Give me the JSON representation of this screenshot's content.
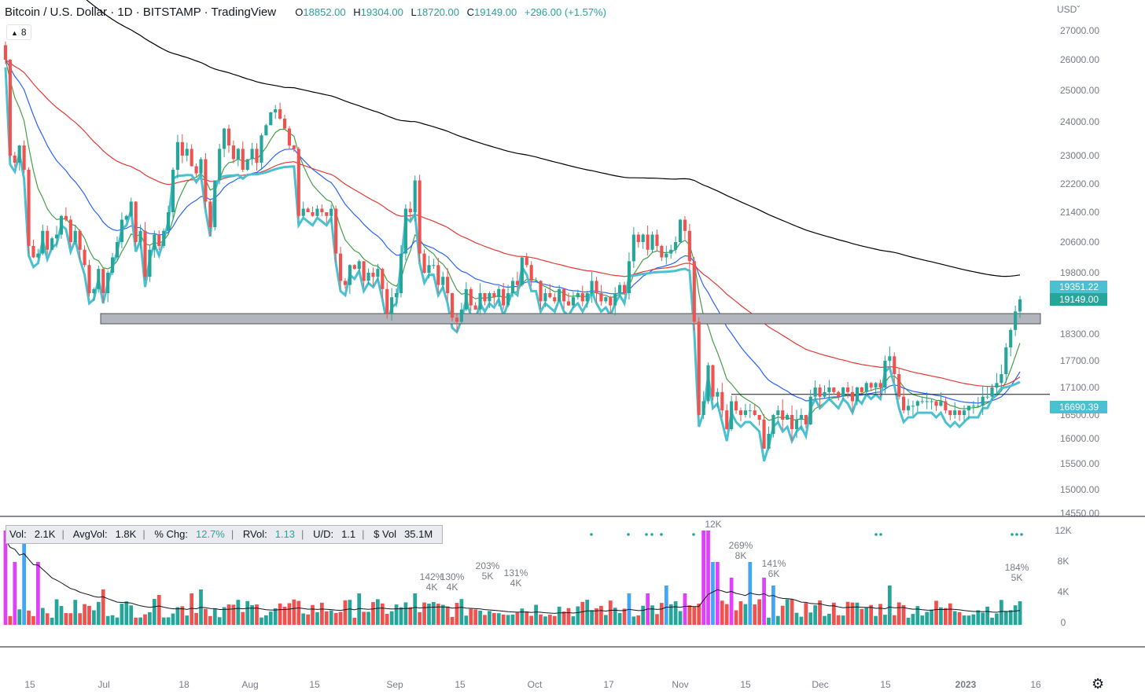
{
  "header": {
    "symbol": "Bitcoin / U.S. Dollar · 1D · BITSTAMP · TradingView",
    "open_label": "O",
    "open": "18852.00",
    "high_label": "H",
    "high": "19304.00",
    "low_label": "L",
    "low": "18720.00",
    "close_label": "C",
    "close": "19149.00",
    "change": "+296.00 (+1.57%)",
    "indicator_count": "8"
  },
  "currency": "USD",
  "volume_stats": {
    "vol_label": "Vol:",
    "vol": "2.1K",
    "avg_label": "AvgVol:",
    "avg": "1.8K",
    "chg_label": "% Chg:",
    "chg": "12.7%",
    "rvol_label": "RVol:",
    "rvol": "1.13",
    "ud_label": "U/D:",
    "ud": "1.1",
    "dvol_label": "$ Vol",
    "dvol": "35.1M"
  },
  "chart_data": [
    {
      "type": "candlestick",
      "price_axis_ticks": [
        "27000.00",
        "26000.00",
        "25000.00",
        "24000.00",
        "23000.00",
        "22200.00",
        "21400.00",
        "20600.00",
        "19800.00",
        "18300.00",
        "17700.00",
        "17100.00",
        "16500.00",
        "16000.00",
        "15500.00",
        "15000.00",
        "14550.00"
      ],
      "price_labels": [
        {
          "value": "19351.22",
          "color": "#4bc0d0"
        },
        {
          "value": "19149.00",
          "color": "#26a69a"
        },
        {
          "value": "16690.39",
          "color": "#4bc0d0"
        }
      ],
      "time_axis_ticks": [
        "15",
        "Jul",
        "18",
        "Aug",
        "15",
        "Sep",
        "15",
        "Oct",
        "17",
        "Nov",
        "15",
        "Dec",
        "15",
        "2023",
        "16"
      ],
      "support_zone": [
        18550,
        18800
      ],
      "horizontal_line": 16950,
      "colors": {
        "up": "#26a69a",
        "down": "#ef5350",
        "ema_fast": "#43a047",
        "ema_mid": "#2962ff",
        "ema_slow": "#e53935",
        "vwap": "#4bc0d0",
        "sma_long": "#000000"
      },
      "closes": [
        [
          26500,
          16,
          26000
        ],
        [
          26000,
          13,
          23000
        ],
        [
          23000,
          9,
          22800
        ],
        [
          22800,
          5,
          23300
        ],
        [
          23300,
          0,
          22600
        ],
        [
          22600,
          -8,
          20500
        ],
        [
          20500,
          -7,
          20200
        ],
        [
          20200,
          4,
          20300
        ],
        [
          20300,
          5,
          20900
        ],
        [
          20900,
          3,
          20400
        ],
        [
          20400,
          2,
          20700
        ],
        [
          20700,
          -4,
          20800
        ],
        [
          20800,
          -3,
          21300
        ],
        [
          21300,
          0,
          21200
        ],
        [
          21200,
          -5,
          20600
        ],
        [
          20600,
          0,
          20900
        ],
        [
          20900,
          3,
          20400
        ],
        [
          20400,
          -7,
          20000
        ],
        [
          20000,
          -8,
          19300
        ],
        [
          19300,
          -12,
          19400
        ],
        [
          19400,
          -4,
          19900
        ],
        [
          19900,
          -4,
          19300
        ],
        [
          19300,
          -3,
          19800
        ],
        [
          19800,
          5,
          20200
        ],
        [
          20200,
          2,
          20600
        ],
        [
          20600,
          3,
          21200
        ],
        [
          21200,
          3,
          21300
        ],
        [
          21300,
          4,
          21700
        ],
        [
          21700,
          4,
          20600
        ],
        [
          20600,
          2,
          20900
        ],
        [
          20900,
          3,
          19700
        ],
        [
          19700,
          0,
          20400
        ],
        [
          20400,
          4,
          20800
        ],
        [
          20800,
          5,
          20500
        ],
        [
          20500,
          1,
          20900
        ],
        [
          20900,
          -1,
          21400
        ],
        [
          21400,
          5,
          22600
        ],
        [
          22600,
          5,
          23400
        ],
        [
          23400,
          1,
          23000
        ],
        [
          23000,
          5,
          23200
        ],
        [
          23200,
          3,
          22700
        ],
        [
          22700,
          1,
          22500
        ],
        [
          22500,
          1,
          22900
        ],
        [
          22900,
          4,
          21700
        ],
        [
          21700,
          1,
          21000
        ],
        [
          21000,
          5,
          22300
        ],
        [
          22300,
          3,
          23200
        ],
        [
          23200,
          5,
          23800
        ],
        [
          23800,
          5,
          23300
        ],
        [
          23300,
          2,
          22900
        ],
        [
          22900,
          -2,
          23200
        ],
        [
          23200,
          -1,
          22600
        ],
        [
          22600,
          -3,
          22900
        ],
        [
          22900,
          3,
          23200
        ],
        [
          23200,
          1,
          22800
        ],
        [
          22800,
          4,
          23600
        ],
        [
          23600,
          2,
          23900
        ],
        [
          23900,
          4,
          24300
        ],
        [
          24300,
          3,
          24400
        ],
        [
          24400,
          0,
          24100
        ],
        [
          24100,
          -3,
          23800
        ],
        [
          23800,
          2,
          23300
        ],
        [
          23300,
          -2,
          23200
        ],
        [
          23200,
          2,
          21300
        ],
        [
          21300,
          0,
          21500
        ],
        [
          21500,
          -3,
          21400
        ],
        [
          21400,
          1,
          21300
        ],
        [
          21300,
          -2,
          21500
        ],
        [
          21500,
          0,
          21400
        ],
        [
          21400,
          -1,
          21300
        ],
        [
          21300,
          -1,
          21500
        ],
        [
          21500,
          5,
          20300
        ],
        [
          20300,
          -2,
          19600
        ],
        [
          19600,
          2,
          19500
        ],
        [
          19500,
          1,
          20000
        ],
        [
          20000,
          0,
          19900
        ],
        [
          19900,
          1,
          20100
        ],
        [
          20100,
          -4,
          19600
        ],
        [
          19600,
          -1,
          19800
        ],
        [
          19800,
          2,
          19700
        ],
        [
          19700,
          -4,
          19900
        ],
        [
          19900,
          -2,
          19400
        ],
        [
          19400,
          -2,
          18800
        ],
        [
          18800,
          -5,
          19200
        ],
        [
          19200,
          3,
          19300
        ],
        [
          19300,
          0,
          20300
        ],
        [
          20300,
          1,
          21500
        ],
        [
          21500,
          1,
          21400
        ],
        [
          21400,
          5,
          22300
        ],
        [
          22300,
          1,
          20300
        ],
        [
          20300,
          -1,
          19800
        ],
        [
          19800,
          -2,
          20000
        ],
        [
          20000,
          0,
          20000
        ],
        [
          20000,
          1,
          19500
        ],
        [
          19500,
          1,
          19700
        ],
        [
          19700,
          3,
          19300
        ],
        [
          19300,
          -1,
          18700
        ],
        [
          18700,
          3,
          18600
        ],
        [
          18600,
          -5,
          18900
        ],
        [
          18900,
          0,
          19400
        ],
        [
          19400,
          4,
          19000
        ],
        [
          19000,
          5,
          18900
        ],
        [
          18900,
          1,
          19300
        ],
        [
          19300,
          1,
          19100
        ],
        [
          19100,
          2,
          19300
        ],
        [
          19300,
          -1,
          19200
        ],
        [
          19200,
          5,
          19400
        ],
        [
          19400,
          -5,
          19000
        ],
        [
          19000,
          3,
          19300
        ],
        [
          19300,
          -1,
          19600
        ],
        [
          19600,
          -1,
          19500
        ],
        [
          19500,
          2,
          20200
        ],
        [
          20200,
          1,
          20000
        ],
        [
          20000,
          -1,
          19600
        ],
        [
          19600,
          -4,
          19600
        ],
        [
          19600,
          -1,
          19100
        ],
        [
          19100,
          -2,
          19300
        ],
        [
          19300,
          4,
          19200
        ],
        [
          19200,
          4,
          19100
        ],
        [
          19100,
          -1,
          19400
        ],
        [
          19400,
          0,
          19100
        ],
        [
          19100,
          0,
          19000
        ],
        [
          19000,
          -5,
          19200
        ],
        [
          19200,
          -1,
          19300
        ],
        [
          19300,
          -2,
          19100
        ],
        [
          19100,
          -5,
          19300
        ],
        [
          19300,
          -1,
          19600
        ],
        [
          19600,
          -5,
          19300
        ],
        [
          19300,
          4,
          19100
        ],
        [
          19100,
          -3,
          19200
        ],
        [
          19200,
          -3,
          19000
        ],
        [
          19000,
          -1,
          19300
        ],
        [
          19300,
          4,
          19500
        ],
        [
          19500,
          3,
          19300
        ],
        [
          19300,
          2,
          20100
        ],
        [
          20100,
          5,
          20800
        ],
        [
          20800,
          -1,
          20600
        ],
        [
          20600,
          -4,
          20800
        ],
        [
          20800,
          2,
          20400
        ],
        [
          20400,
          4,
          20800
        ],
        [
          20800,
          4,
          20500
        ],
        [
          20500,
          -1,
          20200
        ],
        [
          20200,
          -2,
          20300
        ],
        [
          20300,
          3,
          20400
        ],
        [
          20400,
          -2,
          20600
        ],
        [
          20600,
          5,
          21200
        ],
        [
          21200,
          3,
          20900
        ],
        [
          20900,
          -1,
          20100
        ],
        [
          20100,
          -3,
          18600
        ],
        [
          18600,
          -3,
          16500
        ],
        [
          16500,
          -2,
          16800
        ],
        [
          16800,
          -3,
          17600
        ],
        [
          17600,
          -4,
          16900
        ],
        [
          16900,
          -4,
          17000
        ],
        [
          17000,
          -4,
          16600
        ],
        [
          16600,
          4,
          16200
        ],
        [
          16200,
          -4,
          16800
        ],
        [
          16800,
          -3,
          16600
        ],
        [
          16600,
          0,
          16500
        ],
        [
          16500,
          3,
          16600
        ],
        [
          16600,
          -2,
          16600
        ],
        [
          16600,
          -1,
          16500
        ],
        [
          16500,
          4,
          16400
        ],
        [
          16400,
          3,
          15800
        ],
        [
          15800,
          -1,
          16100
        ],
        [
          16100,
          2,
          16500
        ],
        [
          16500,
          5,
          16600
        ],
        [
          16600,
          -3,
          16400
        ],
        [
          16400,
          -3,
          16500
        ],
        [
          16500,
          0,
          16200
        ],
        [
          16200,
          3,
          16400
        ],
        [
          16400,
          1,
          16500
        ],
        [
          16500,
          3,
          16300
        ],
        [
          16300,
          5,
          16900
        ],
        [
          16900,
          -1,
          17100
        ],
        [
          17100,
          -2,
          16900
        ],
        [
          16900,
          4,
          17000
        ],
        [
          17000,
          3,
          17100
        ],
        [
          17100,
          2,
          17000
        ],
        [
          17000,
          5,
          16900
        ],
        [
          16900,
          -2,
          17100
        ],
        [
          17100,
          -1,
          17000
        ],
        [
          17000,
          0,
          16800
        ],
        [
          16800,
          -1,
          17100
        ],
        [
          17100,
          -3,
          17000
        ],
        [
          17000,
          -1,
          17200
        ],
        [
          17200,
          0,
          17100
        ],
        [
          17100,
          0,
          17200
        ],
        [
          17200,
          4,
          17100
        ],
        [
          17100,
          5,
          17700
        ],
        [
          17700,
          1,
          17800
        ],
        [
          17800,
          0,
          17400
        ],
        [
          17400,
          -1,
          16900
        ],
        [
          16900,
          -3,
          16600
        ],
        [
          16600,
          4,
          16700
        ],
        [
          16700,
          -3,
          16700
        ],
        [
          16700,
          2,
          16800
        ],
        [
          16800,
          -2,
          16800
        ],
        [
          16800,
          -5,
          16800
        ],
        [
          16800,
          2,
          16800
        ],
        [
          16800,
          -4,
          16700
        ],
        [
          16700,
          -5,
          16800
        ],
        [
          16800,
          -1,
          16600
        ],
        [
          16600,
          2,
          16500
        ],
        [
          16500,
          -1,
          16600
        ],
        [
          16600,
          -3,
          16500
        ],
        [
          16500,
          4,
          16600
        ],
        [
          16600,
          4,
          16700
        ],
        [
          16700,
          4,
          16700
        ],
        [
          16700,
          3,
          16700
        ],
        [
          16700,
          4,
          16900
        ],
        [
          16900,
          1,
          16900
        ],
        [
          16900,
          5,
          17100
        ],
        [
          17100,
          1,
          17200
        ],
        [
          17200,
          1,
          17400
        ],
        [
          17400,
          5,
          18000
        ],
        [
          18000,
          4,
          18400
        ],
        [
          18400,
          5,
          18852
        ],
        [
          18852,
          0,
          19149
        ]
      ]
    },
    {
      "type": "bar",
      "name": "Volume",
      "y_axis_ticks": [
        "12K",
        "8K",
        "4K",
        "0"
      ],
      "annotations": [
        {
          "pct": "142%",
          "vol": "4K"
        },
        {
          "pct": "130%",
          "vol": "4K"
        },
        {
          "pct": "203%",
          "vol": "5K"
        },
        {
          "pct": "131%",
          "vol": "4K"
        },
        {
          "pct": "",
          "vol": "12K"
        },
        {
          "pct": "269%",
          "vol": "8K"
        },
        {
          "pct": "141%",
          "vol": "6K"
        },
        {
          "pct": "184%",
          "vol": "5K"
        }
      ]
    }
  ]
}
